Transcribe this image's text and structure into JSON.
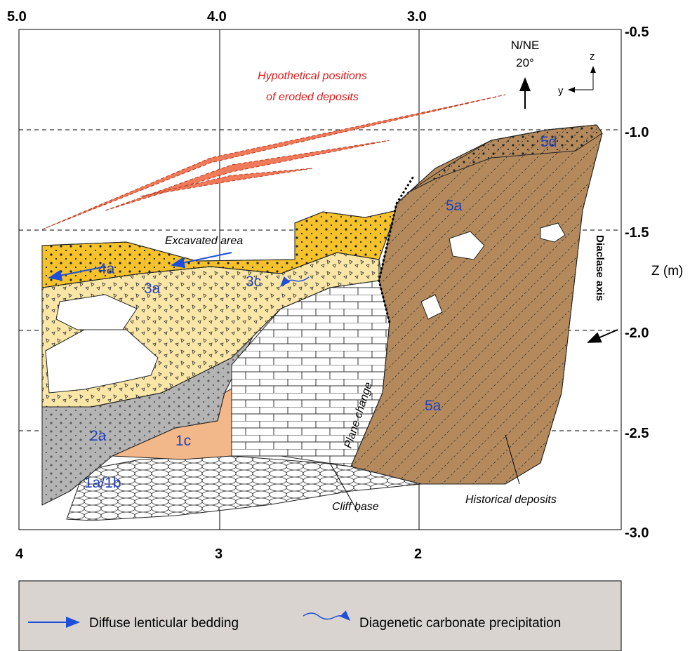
{
  "axes": {
    "top": [
      "5.0",
      "4.0",
      "3.0"
    ],
    "right": [
      "-0.5",
      "-1.0",
      "-1.5",
      "-2.0",
      "-2.5",
      "-3.0"
    ],
    "bottom": [
      "4",
      "3",
      "2"
    ],
    "z_label": "Z (m)"
  },
  "orientation": {
    "north": "N/NE",
    "angle": "20°",
    "z": "z",
    "y": "y"
  },
  "annotations": {
    "hypothetical": [
      "Hypothetical positions",
      "of eroded deposits"
    ],
    "excavated": "Excavated area",
    "diaclase": "Diaclase axis",
    "plane_change": "Plane change",
    "cliff_base": "Cliff base",
    "historical": "Historical deposits"
  },
  "layers": [
    "5d",
    "5a",
    "5a",
    "4a",
    "3a",
    "3c",
    "2a",
    "1c",
    "1a/1b"
  ],
  "legend": [
    "Diffuse lenticular bedding",
    "Diagenetic carbonate precipitation"
  ]
}
